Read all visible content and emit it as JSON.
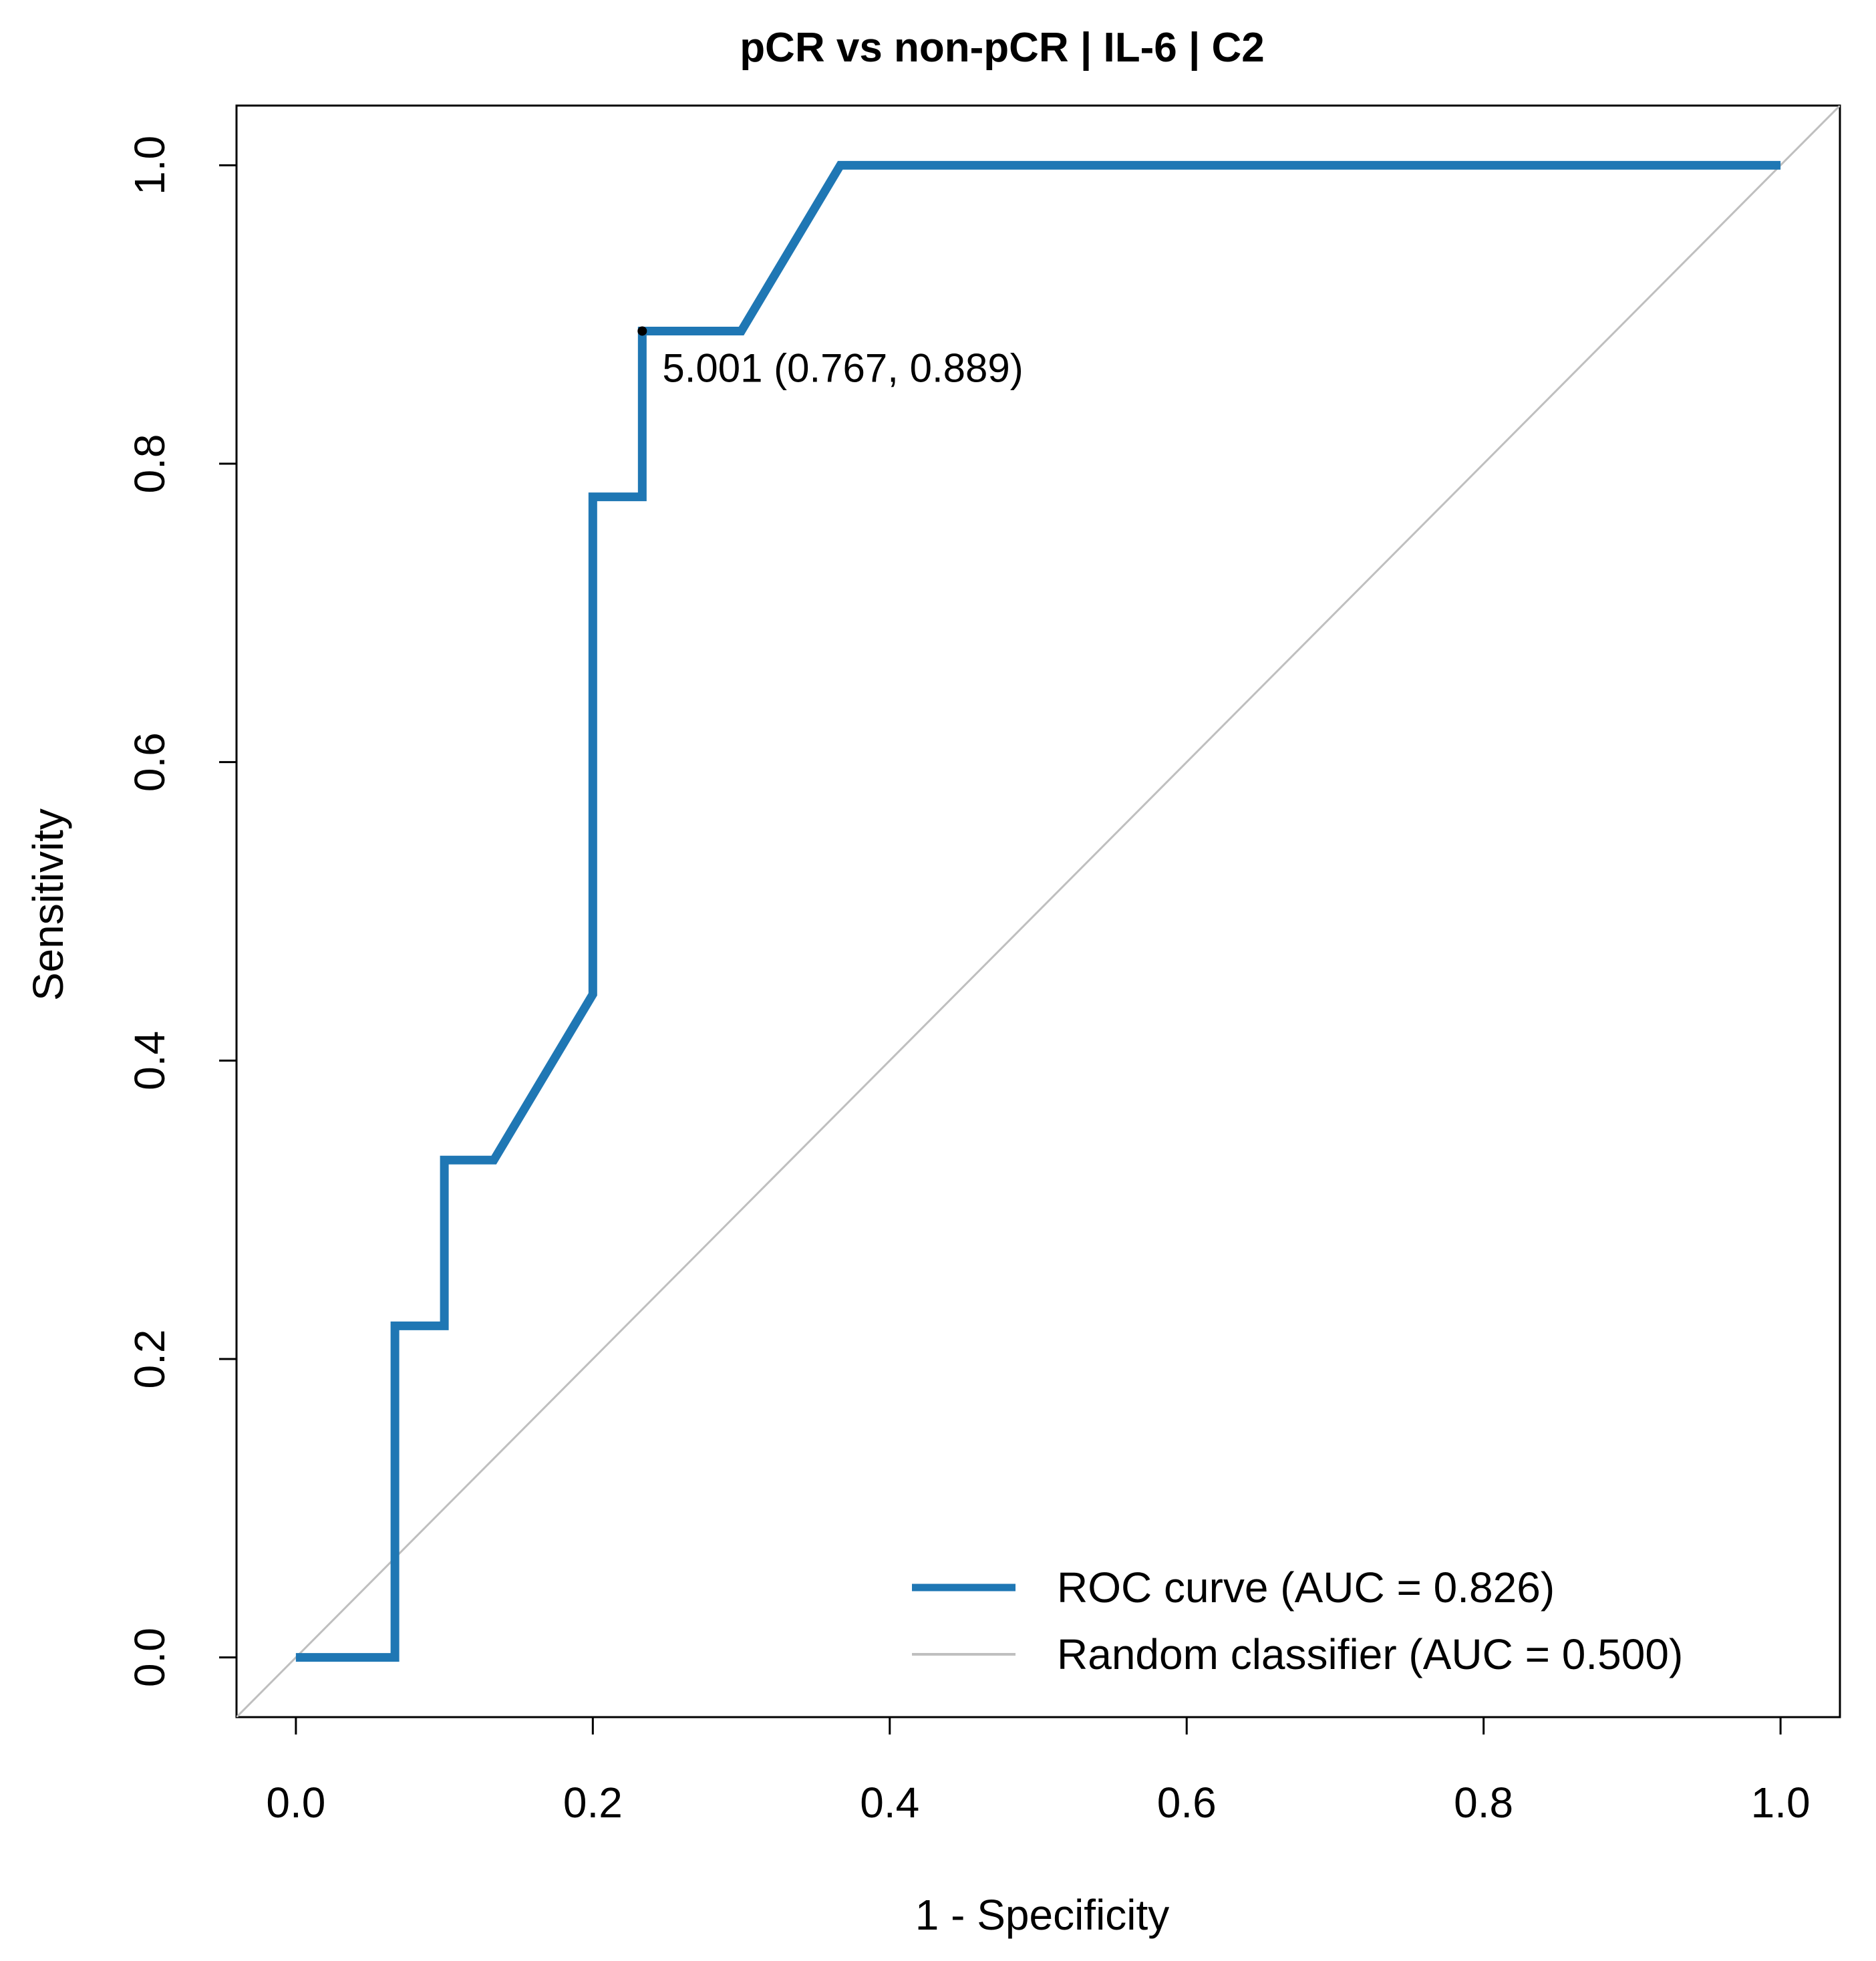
{
  "chart_data": {
    "type": "line",
    "title": "pCR vs non-pCR | IL-6 | C2",
    "xlabel": "1 - Specificity",
    "ylabel": "Sensitivity",
    "xlim": [
      -0.04,
      1.04
    ],
    "ylim": [
      -0.04,
      1.04
    ],
    "x_ticks": [
      0.0,
      0.2,
      0.4,
      0.6,
      0.8,
      1.0
    ],
    "y_ticks": [
      0.0,
      0.2,
      0.4,
      0.6,
      0.8,
      1.0
    ],
    "x_tick_labels": [
      "0.0",
      "0.2",
      "0.4",
      "0.6",
      "0.8",
      "1.0"
    ],
    "y_tick_labels": [
      "0.0",
      "0.2",
      "0.4",
      "0.6",
      "0.8",
      "1.0"
    ],
    "grid": false,
    "legend_position": "bottom-right",
    "series": [
      {
        "name": "ROC curve (AUC = 0.826)",
        "color": "#1f77b4",
        "x": [
          0.0,
          0.0667,
          0.0667,
          0.1,
          0.1,
          0.1333,
          0.2,
          0.2,
          0.2333,
          0.2333,
          0.3,
          0.3667,
          1.0
        ],
        "y": [
          0.0,
          0.0,
          0.2222,
          0.2222,
          0.3333,
          0.3333,
          0.4444,
          0.7778,
          0.7778,
          0.8889,
          0.8889,
          1.0,
          1.0
        ]
      },
      {
        "name": "Random classifier (AUC = 0.500)",
        "color": "#bfbfbf",
        "x": [
          -0.04,
          1.04
        ],
        "y": [
          -0.04,
          1.04
        ]
      }
    ],
    "annotation": {
      "text": "5.001 (0.767, 0.889)",
      "point_x": 0.2333,
      "point_y": 0.8889
    }
  }
}
